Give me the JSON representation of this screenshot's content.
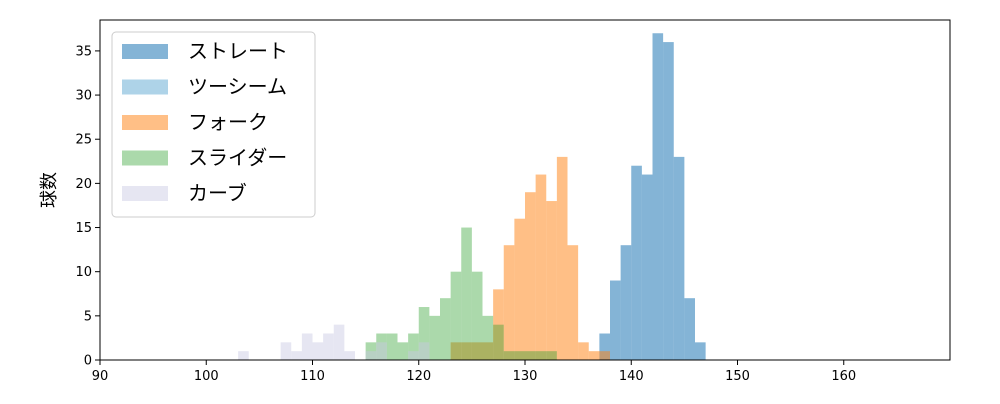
{
  "chart_data": {
    "type": "histogram",
    "title": "",
    "xlabel": "",
    "ylabel": "球数",
    "xlim": [
      90,
      170
    ],
    "ylim": [
      0,
      38.5
    ],
    "x_ticks": [
      90,
      100,
      110,
      120,
      130,
      140,
      150,
      160
    ],
    "y_ticks": [
      0,
      5,
      10,
      15,
      20,
      25,
      30,
      35
    ],
    "grid": false,
    "legend_position": "top-left",
    "bin_width": 1,
    "series": [
      {
        "name": "ストレート",
        "color": "#1f77b4",
        "opacity": 0.55,
        "bins": [
          {
            "x": 137,
            "count": 3
          },
          {
            "x": 138,
            "count": 9
          },
          {
            "x": 139,
            "count": 13
          },
          {
            "x": 140,
            "count": 22
          },
          {
            "x": 141,
            "count": 21
          },
          {
            "x": 142,
            "count": 37
          },
          {
            "x": 143,
            "count": 36
          },
          {
            "x": 144,
            "count": 23
          },
          {
            "x": 145,
            "count": 7
          },
          {
            "x": 146,
            "count": 2
          }
        ]
      },
      {
        "name": "ツーシーム",
        "color": "#6baed6",
        "opacity": 0.55,
        "bins": []
      },
      {
        "name": "フォーク",
        "color": "#ff7f0e",
        "opacity": 0.5,
        "bins": [
          {
            "x": 123,
            "count": 2
          },
          {
            "x": 124,
            "count": 2
          },
          {
            "x": 125,
            "count": 2
          },
          {
            "x": 126,
            "count": 2
          },
          {
            "x": 127,
            "count": 8
          },
          {
            "x": 128,
            "count": 13
          },
          {
            "x": 129,
            "count": 16
          },
          {
            "x": 130,
            "count": 19
          },
          {
            "x": 131,
            "count": 21
          },
          {
            "x": 132,
            "count": 18
          },
          {
            "x": 133,
            "count": 23
          },
          {
            "x": 134,
            "count": 13
          },
          {
            "x": 135,
            "count": 2
          },
          {
            "x": 136,
            "count": 1
          },
          {
            "x": 137,
            "count": 1
          }
        ]
      },
      {
        "name": "スライダー",
        "color": "#2ca02c",
        "opacity": 0.4,
        "bins": [
          {
            "x": 115,
            "count": 2
          },
          {
            "x": 116,
            "count": 3
          },
          {
            "x": 117,
            "count": 3
          },
          {
            "x": 118,
            "count": 2
          },
          {
            "x": 119,
            "count": 3
          },
          {
            "x": 120,
            "count": 6
          },
          {
            "x": 121,
            "count": 5
          },
          {
            "x": 122,
            "count": 7
          },
          {
            "x": 123,
            "count": 10
          },
          {
            "x": 124,
            "count": 15
          },
          {
            "x": 125,
            "count": 10
          },
          {
            "x": 126,
            "count": 5
          },
          {
            "x": 127,
            "count": 4
          },
          {
            "x": 128,
            "count": 1
          },
          {
            "x": 129,
            "count": 1
          },
          {
            "x": 130,
            "count": 1
          },
          {
            "x": 131,
            "count": 1
          },
          {
            "x": 132,
            "count": 1
          }
        ]
      },
      {
        "name": "カーブ",
        "color": "#c7c7e2",
        "opacity": 0.45,
        "bins": [
          {
            "x": 103,
            "count": 1
          },
          {
            "x": 107,
            "count": 2
          },
          {
            "x": 108,
            "count": 1
          },
          {
            "x": 109,
            "count": 3
          },
          {
            "x": 110,
            "count": 2
          },
          {
            "x": 111,
            "count": 3
          },
          {
            "x": 112,
            "count": 4
          },
          {
            "x": 113,
            "count": 1
          },
          {
            "x": 115,
            "count": 1
          },
          {
            "x": 116,
            "count": 2
          },
          {
            "x": 119,
            "count": 1
          },
          {
            "x": 120,
            "count": 2
          }
        ]
      }
    ]
  }
}
